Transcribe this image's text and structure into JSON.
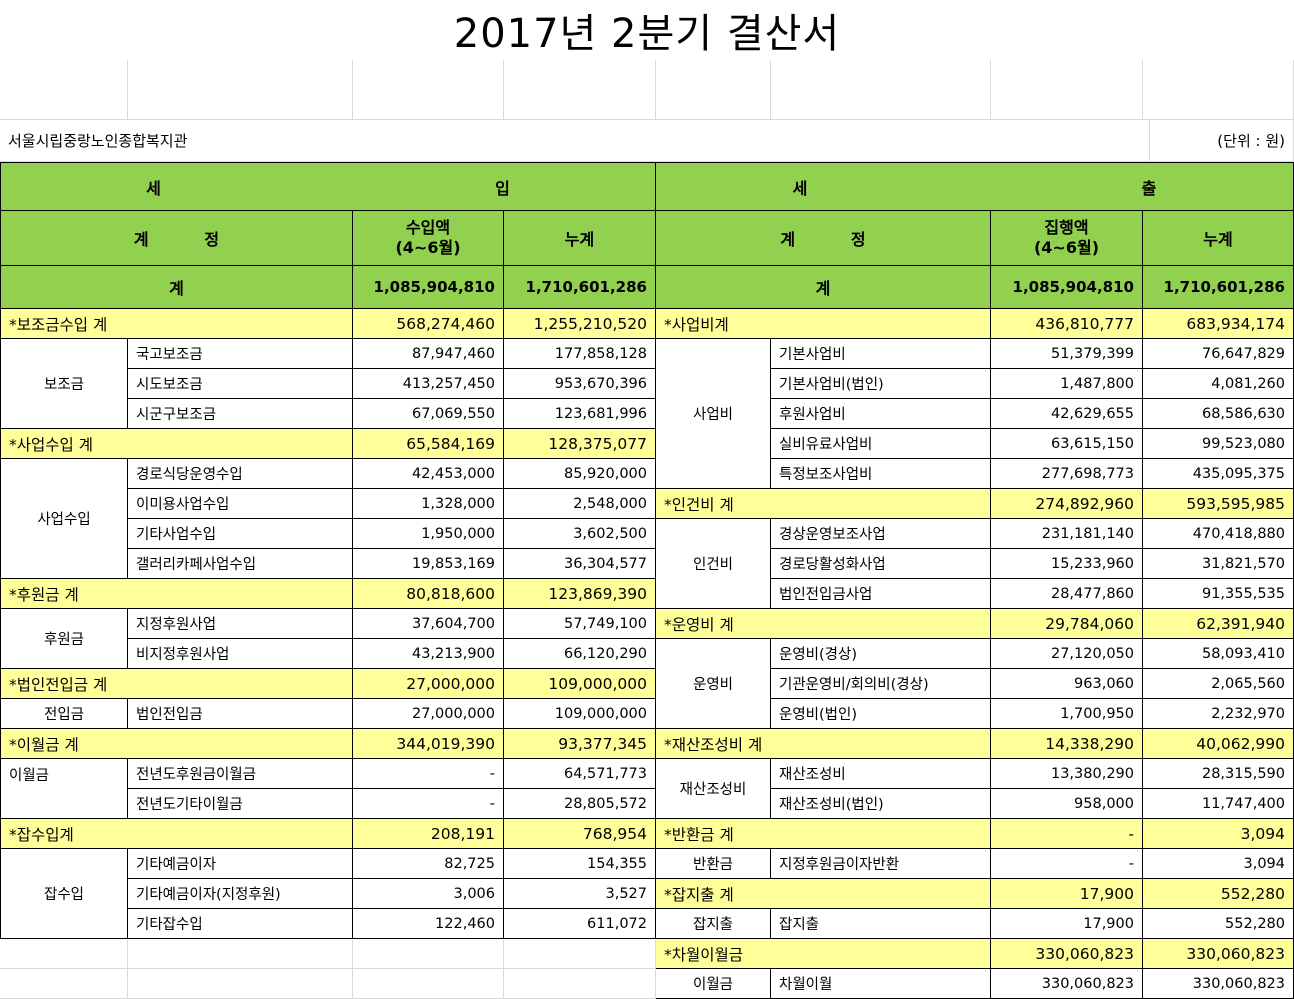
{
  "title": "2017년 2분기 결산서",
  "org": "서울시립중랑노인종합복지관",
  "unit": "(단위 : 원)",
  "head": {
    "income": "세          입",
    "expense": "세          출",
    "account": "계     정",
    "income_amt": "수입액\n(4~6월)",
    "expense_amt": "집행액\n(4~6월)",
    "cumulative": "누계",
    "total_label": "계",
    "income_total": "1,085,904,810",
    "income_cum": "1,710,601,286",
    "expense_total": "1,085,904,810",
    "expense_cum": "1,710,601,286"
  },
  "income_rows": [
    {
      "type": "sub",
      "label": "*보조금수입 계",
      "amt": "568,274,460",
      "cum": "1,255,210,520"
    },
    {
      "type": "item",
      "group": "보조금",
      "name": "국고보조금",
      "amt": "87,947,460",
      "cum": "177,858,128"
    },
    {
      "type": "item",
      "group": "",
      "name": "시도보조금",
      "amt": "413,257,450",
      "cum": "953,670,396"
    },
    {
      "type": "item",
      "group": "",
      "name": "시군구보조금",
      "amt": "67,069,550",
      "cum": "123,681,996"
    },
    {
      "type": "sub",
      "label": "*사업수입 계",
      "amt": "65,584,169",
      "cum": "128,375,077"
    },
    {
      "type": "item",
      "group": "사업수입",
      "name": "경로식당운영수입",
      "amt": "42,453,000",
      "cum": "85,920,000"
    },
    {
      "type": "item",
      "group": "",
      "name": "이미용사업수입",
      "amt": "1,328,000",
      "cum": "2,548,000"
    },
    {
      "type": "item",
      "group": "",
      "name": "기타사업수입",
      "amt": "1,950,000",
      "cum": "3,602,500"
    },
    {
      "type": "item",
      "group": "",
      "name": "갤러리카페사업수입",
      "amt": "19,853,169",
      "cum": "36,304,577"
    },
    {
      "type": "sub",
      "label": "*후원금 계",
      "amt": "80,818,600",
      "cum": "123,869,390"
    },
    {
      "type": "item",
      "group": "후원금",
      "name": "지정후원사업",
      "amt": "37,604,700",
      "cum": "57,749,100"
    },
    {
      "type": "item",
      "group": "",
      "name": "비지정후원사업",
      "amt": "43,213,900",
      "cum": "66,120,290"
    },
    {
      "type": "sub",
      "label": "*법인전입금 계",
      "amt": "27,000,000",
      "cum": "109,000,000"
    },
    {
      "type": "item",
      "group": "전입금",
      "name": "법인전입금",
      "amt": "27,000,000",
      "cum": "109,000,000"
    },
    {
      "type": "sub",
      "label": "*이월금 계",
      "amt": "344,019,390",
      "cum": "93,377,345"
    },
    {
      "type": "item",
      "group": "이월금",
      "name": "전년도후원금이월금",
      "amt": "-",
      "cum": "64,571,773"
    },
    {
      "type": "item",
      "group": "",
      "name": "전년도기타이월금",
      "amt": "-",
      "cum": "28,805,572"
    },
    {
      "type": "sub",
      "label": "*잡수입계",
      "amt": "208,191",
      "cum": "768,954"
    },
    {
      "type": "item",
      "group": "잡수입",
      "name": "기타예금이자",
      "amt": "82,725",
      "cum": "154,355"
    },
    {
      "type": "item",
      "group": "",
      "name": "기타예금이자(지정후원)",
      "amt": "3,006",
      "cum": "3,527"
    },
    {
      "type": "item",
      "group": "",
      "name": "기타잡수입",
      "amt": "122,460",
      "cum": "611,072"
    }
  ],
  "expense_rows": [
    {
      "type": "sub",
      "label": "*사업비계",
      "amt": "436,810,777",
      "cum": "683,934,174"
    },
    {
      "type": "item",
      "group": "사업비",
      "name": "기본사업비",
      "amt": "51,379,399",
      "cum": "76,647,829"
    },
    {
      "type": "item",
      "group": "",
      "name": "기본사업비(법인)",
      "amt": "1,487,800",
      "cum": "4,081,260"
    },
    {
      "type": "item",
      "group": "",
      "name": "후원사업비",
      "amt": "42,629,655",
      "cum": "68,586,630"
    },
    {
      "type": "item",
      "group": "",
      "name": "실비유료사업비",
      "amt": "63,615,150",
      "cum": "99,523,080"
    },
    {
      "type": "item",
      "group": "",
      "name": "특정보조사업비",
      "amt": "277,698,773",
      "cum": "435,095,375"
    },
    {
      "type": "sub",
      "label": "*인건비 계",
      "amt": "274,892,960",
      "cum": "593,595,985"
    },
    {
      "type": "item",
      "group": "인건비",
      "name": "경상운영보조사업",
      "amt": "231,181,140",
      "cum": "470,418,880"
    },
    {
      "type": "item",
      "group": "",
      "name": "경로당활성화사업",
      "amt": "15,233,960",
      "cum": "31,821,570"
    },
    {
      "type": "item",
      "group": "",
      "name": "법인전입금사업",
      "amt": "28,477,860",
      "cum": "91,355,535"
    },
    {
      "type": "sub",
      "label": "*운영비 계",
      "amt": "29,784,060",
      "cum": "62,391,940"
    },
    {
      "type": "item",
      "group": "운영비",
      "name": "운영비(경상)",
      "amt": "27,120,050",
      "cum": "58,093,410"
    },
    {
      "type": "item",
      "group": "",
      "name": "기관운영비/회의비(경상)",
      "amt": "963,060",
      "cum": "2,065,560"
    },
    {
      "type": "item",
      "group": "",
      "name": "운영비(법인)",
      "amt": "1,700,950",
      "cum": "2,232,970"
    },
    {
      "type": "sub",
      "label": "*재산조성비 계",
      "amt": "14,338,290",
      "cum": "40,062,990"
    },
    {
      "type": "item",
      "group": "재산조성비",
      "name": "재산조성비",
      "amt": "13,380,290",
      "cum": "28,315,590"
    },
    {
      "type": "item",
      "group": "",
      "name": "재산조성비(법인)",
      "amt": "958,000",
      "cum": "11,747,400"
    },
    {
      "type": "sub",
      "label": "*반환금 계",
      "amt": "-",
      "cum": "3,094"
    },
    {
      "type": "item",
      "group": "반환금",
      "name": "지정후원금이자반환",
      "amt": "-",
      "cum": "3,094"
    },
    {
      "type": "sub",
      "label": "*잡지출 계",
      "amt": "17,900",
      "cum": "552,280"
    },
    {
      "type": "item",
      "group": "잡지출",
      "name": "잡지출",
      "amt": "17,900",
      "cum": "552,280"
    },
    {
      "type": "sub",
      "label": "*차월이월금",
      "amt": "330,060,823",
      "cum": "330,060,823"
    },
    {
      "type": "item",
      "group": "이월금",
      "name": "차월이월",
      "amt": "330,060,823",
      "cum": "330,060,823"
    }
  ]
}
